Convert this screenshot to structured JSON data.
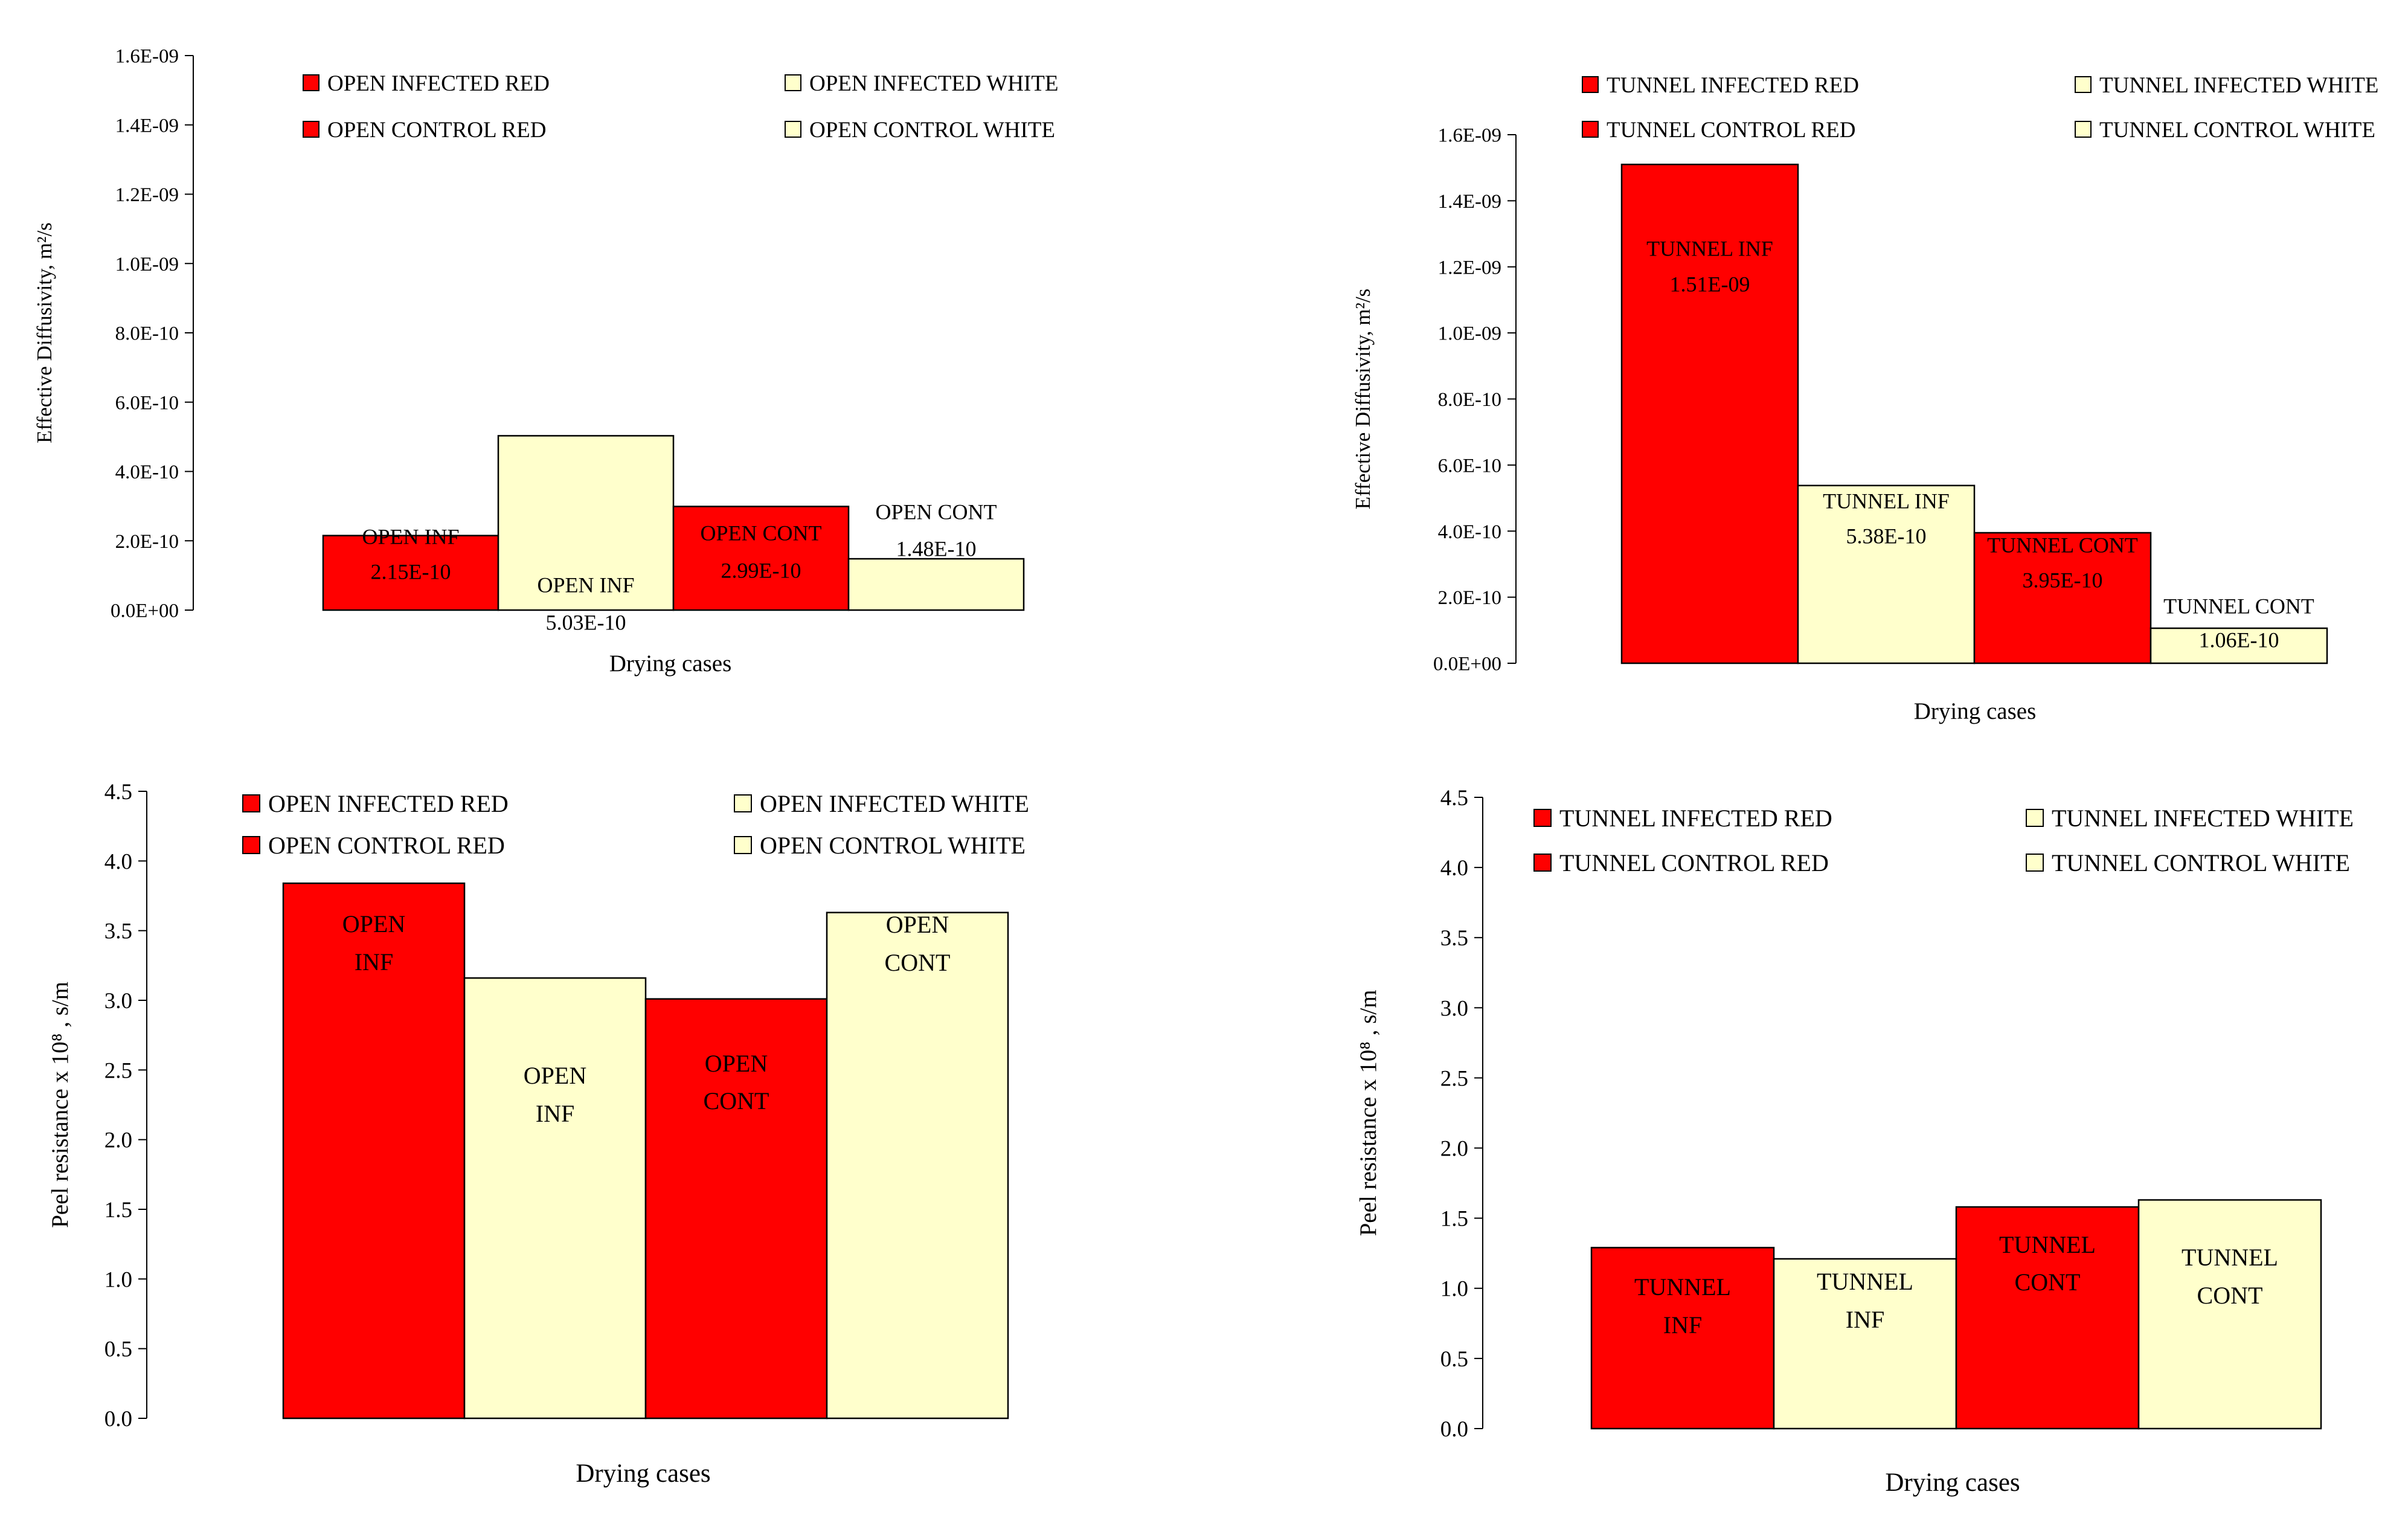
{
  "colors": {
    "red": "#ff0000",
    "white": "#ffffcc",
    "stroke": "#000000"
  },
  "chart_data": [
    {
      "type": "bar",
      "id": "open-diffusivity",
      "title": "",
      "xlabel": "Drying cases",
      "ylabel": "Effective Diffusivity, m²/s",
      "ylim": [
        0,
        1.6e-09
      ],
      "yticks": [
        "0.0E+00",
        "2.0E-10",
        "4.0E-10",
        "6.0E-10",
        "8.0E-10",
        "1.0E-09",
        "1.2E-09",
        "1.4E-09",
        "1.6E-09"
      ],
      "legend": [
        {
          "label": "OPEN INFECTED RED",
          "color": "red"
        },
        {
          "label": "OPEN INFECTED WHITE",
          "color": "white"
        },
        {
          "label": "OPEN CONTROL RED",
          "color": "red"
        },
        {
          "label": "OPEN CONTROL WHITE",
          "color": "white"
        }
      ],
      "series": [
        {
          "name": "OPEN INFECTED RED",
          "value": 2.15e-10,
          "color": "red",
          "labels": [
            "OPEN INF",
            "2.15E-10"
          ]
        },
        {
          "name": "OPEN INFECTED WHITE",
          "value": 5.03e-10,
          "color": "white",
          "labels": [
            "OPEN INF",
            "5.03E-10"
          ]
        },
        {
          "name": "OPEN CONTROL RED",
          "value": 2.99e-10,
          "color": "red",
          "labels": [
            "OPEN CONT",
            "2.99E-10"
          ]
        },
        {
          "name": "OPEN CONTROL WHITE",
          "value": 1.48e-10,
          "color": "white",
          "labels": [
            "OPEN CONT",
            "1.48E-10"
          ]
        }
      ]
    },
    {
      "type": "bar",
      "id": "tunnel-diffusivity",
      "title": "",
      "xlabel": "Drying cases",
      "ylabel": "Effective Diffusivity, m²/s",
      "ylim": [
        0,
        1.6e-09
      ],
      "yticks": [
        "0.0E+00",
        "2.0E-10",
        "4.0E-10",
        "6.0E-10",
        "8.0E-10",
        "1.0E-09",
        "1.2E-09",
        "1.4E-09",
        "1.6E-09"
      ],
      "legend": [
        {
          "label": "TUNNEL INFECTED RED",
          "color": "red"
        },
        {
          "label": "TUNNEL INFECTED WHITE",
          "color": "white"
        },
        {
          "label": "TUNNEL CONTROL RED",
          "color": "red"
        },
        {
          "label": "TUNNEL CONTROL WHITE",
          "color": "white"
        }
      ],
      "series": [
        {
          "name": "TUNNEL INFECTED RED",
          "value": 1.51e-09,
          "color": "red",
          "labels": [
            "TUNNEL INF",
            "1.51E-09"
          ]
        },
        {
          "name": "TUNNEL INFECTED WHITE",
          "value": 5.38e-10,
          "color": "white",
          "labels": [
            "TUNNEL INF",
            "5.38E-10"
          ]
        },
        {
          "name": "TUNNEL CONTROL RED",
          "value": 3.95e-10,
          "color": "red",
          "labels": [
            "TUNNEL CONT",
            "3.95E-10"
          ]
        },
        {
          "name": "TUNNEL CONTROL WHITE",
          "value": 1.06e-10,
          "color": "white",
          "labels": [
            "TUNNEL CONT",
            "1.06E-10"
          ]
        }
      ]
    },
    {
      "type": "bar",
      "id": "open-peel",
      "title": "",
      "xlabel": "Drying cases",
      "ylabel": "Peel resistance x 10⁸ , s/m",
      "ylim": [
        0,
        4.5
      ],
      "yticks": [
        "0.0",
        "0.5",
        "1.0",
        "1.5",
        "2.0",
        "2.5",
        "3.0",
        "3.5",
        "4.0",
        "4.5"
      ],
      "legend": [
        {
          "label": "OPEN INFECTED RED",
          "color": "red"
        },
        {
          "label": "OPEN INFECTED WHITE",
          "color": "white"
        },
        {
          "label": "OPEN CONTROL RED",
          "color": "red"
        },
        {
          "label": "OPEN CONTROL WHITE",
          "color": "white"
        }
      ],
      "series": [
        {
          "name": "OPEN INFECTED RED",
          "value": 3.84,
          "color": "red",
          "labels": [
            "OPEN",
            "INF"
          ]
        },
        {
          "name": "OPEN INFECTED WHITE",
          "value": 3.16,
          "color": "white",
          "labels": [
            "OPEN",
            "INF"
          ]
        },
        {
          "name": "OPEN CONTROL RED",
          "value": 3.01,
          "color": "red",
          "labels": [
            "OPEN",
            "CONT"
          ]
        },
        {
          "name": "OPEN CONTROL WHITE",
          "value": 3.63,
          "color": "white",
          "labels": [
            "OPEN",
            "CONT"
          ]
        }
      ]
    },
    {
      "type": "bar",
      "id": "tunnel-peel",
      "title": "",
      "xlabel": "Drying cases",
      "ylabel": "Peel resistance x 10⁸ , s/m",
      "ylim": [
        0,
        4.5
      ],
      "yticks": [
        "0.0",
        "0.5",
        "1.0",
        "1.5",
        "2.0",
        "2.5",
        "3.0",
        "3.5",
        "4.0",
        "4.5"
      ],
      "legend": [
        {
          "label": "TUNNEL INFECTED RED",
          "color": "red"
        },
        {
          "label": "TUNNEL INFECTED WHITE",
          "color": "white"
        },
        {
          "label": "TUNNEL CONTROL RED",
          "color": "red"
        },
        {
          "label": "TUNNEL CONTROL WHITE",
          "color": "white"
        }
      ],
      "series": [
        {
          "name": "TUNNEL INFECTED RED",
          "value": 1.29,
          "color": "red",
          "labels": [
            "TUNNEL",
            "INF"
          ]
        },
        {
          "name": "TUNNEL INFECTED WHITE",
          "value": 1.21,
          "color": "white",
          "labels": [
            "TUNNEL",
            "INF"
          ]
        },
        {
          "name": "TUNNEL CONTROL RED",
          "value": 1.58,
          "color": "red",
          "labels": [
            "TUNNEL",
            "CONT"
          ]
        },
        {
          "name": "TUNNEL CONTROL WHITE",
          "value": 1.63,
          "color": "white",
          "labels": [
            "TUNNEL",
            "CONT"
          ]
        }
      ]
    }
  ]
}
